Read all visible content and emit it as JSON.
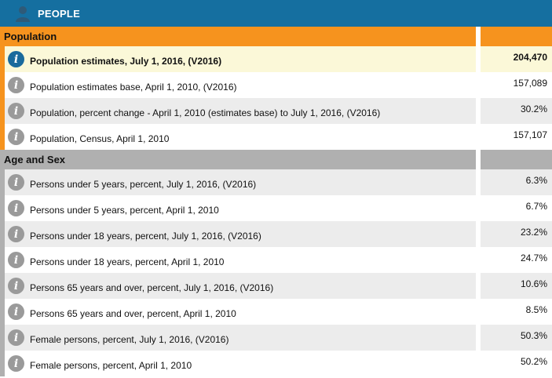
{
  "header": {
    "title": "PEOPLE",
    "icon": "person-icon"
  },
  "sections": {
    "population": {
      "label": "Population",
      "rows": [
        {
          "label": "Population estimates, July 1, 2016, (V2016)",
          "value": "204,470"
        },
        {
          "label": "Population estimates base, April 1, 2010, (V2016)",
          "value": "157,089"
        },
        {
          "label": "Population, percent change - April 1, 2010 (estimates base) to July 1, 2016, (V2016)",
          "value": "30.2%"
        },
        {
          "label": "Population, Census, April 1, 2010",
          "value": "157,107"
        }
      ]
    },
    "age_sex": {
      "label": "Age and Sex",
      "rows": [
        {
          "label": "Persons under 5 years, percent, July 1, 2016, (V2016)",
          "value": "6.3%"
        },
        {
          "label": "Persons under 5 years, percent, April 1, 2010",
          "value": "6.7%"
        },
        {
          "label": "Persons under 18 years, percent, July 1, 2016, (V2016)",
          "value": "23.2%"
        },
        {
          "label": "Persons under 18 years, percent, April 1, 2010",
          "value": "24.7%"
        },
        {
          "label": "Persons 65 years and over, percent, July 1, 2016, (V2016)",
          "value": "10.6%"
        },
        {
          "label": "Persons 65 years and over, percent, April 1, 2010",
          "value": "8.5%"
        },
        {
          "label": "Female persons, percent, July 1, 2016, (V2016)",
          "value": "50.3%"
        },
        {
          "label": "Female persons, percent, April 1, 2010",
          "value": "50.2%"
        }
      ]
    }
  },
  "icons": {
    "info": "info-icon"
  },
  "colors": {
    "header_bg": "#156fa0",
    "population_accent": "#f6931e",
    "age_sex_accent": "#b0b0b0",
    "highlight_row": "#fbf8d8",
    "info_icon_active": "#1a6a9c",
    "info_icon": "#9a9a9a"
  },
  "info_glyph": "i"
}
